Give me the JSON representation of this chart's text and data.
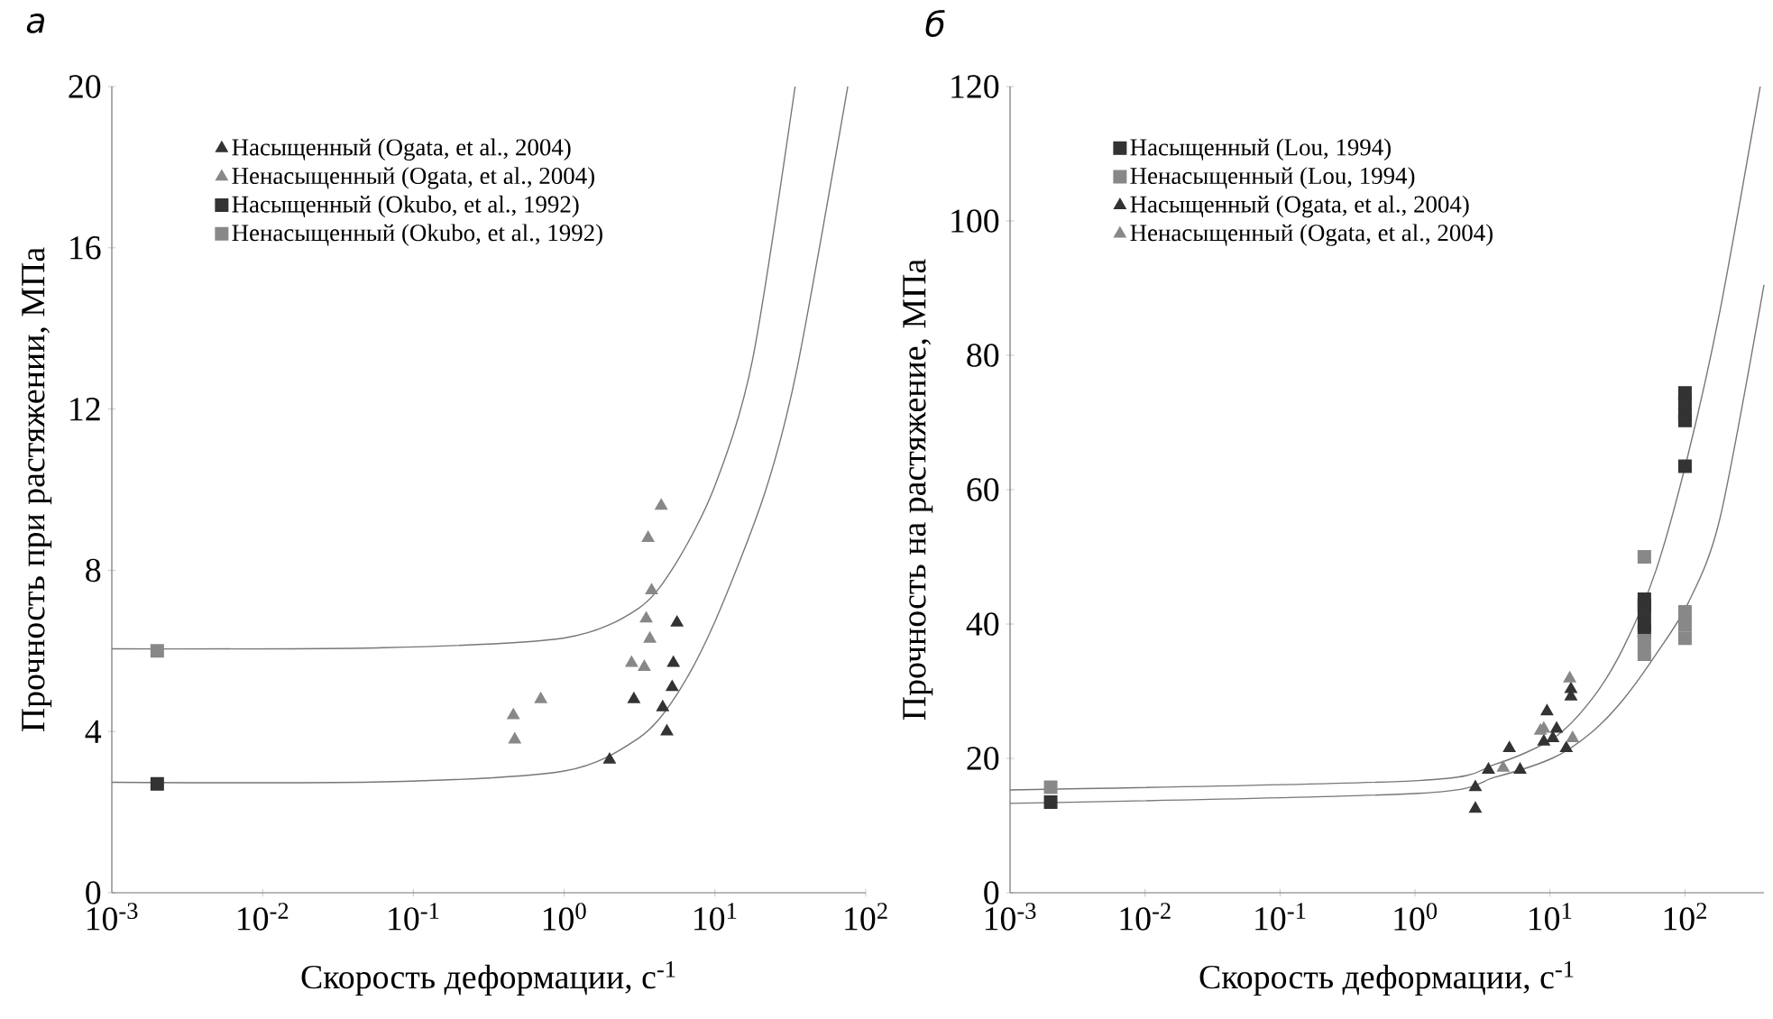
{
  "chart_data": [
    {
      "type": "scatter",
      "title": "а",
      "xlabel": "Скорость деформации, с$^{-1}$",
      "ylabel": "Прочность при растяжении, МПа",
      "log": "x",
      "legend": "top left",
      "xlim": [
        0.001,
        100
      ],
      "ylim": [
        0,
        20
      ],
      "xticks": [
        {
          "value": 0.001,
          "label": "10$^{-3}$"
        },
        {
          "value": 0.01,
          "label": "10$^{-2}$"
        },
        {
          "value": 0.1,
          "label": "10$^{-1}$"
        },
        {
          "value": 1,
          "label": "10$^{0}$"
        },
        {
          "value": 10,
          "label": "10$^{1}$"
        },
        {
          "value": 100,
          "label": "10$^{2}$"
        }
      ],
      "yticks": [
        0,
        4,
        8,
        12,
        16,
        20
      ],
      "series": [
        {
          "name": "Насыщенный (Ogata, et al., 2004)",
          "color": "#333333",
          "marker": "triangle",
          "x": [
            2.0,
            2.9,
            4.5,
            4.8,
            5.2,
            5.3,
            5.6
          ],
          "values": [
            3.3,
            4.8,
            4.6,
            4.0,
            5.1,
            5.7,
            6.7
          ]
        },
        {
          "name": "Ненасыщенный (Ogata, et al., 2004)",
          "color": "#888888",
          "marker": "triangle",
          "x": [
            0.46,
            0.47,
            0.7,
            2.8,
            3.4,
            3.5,
            3.7,
            3.8,
            3.6,
            4.4
          ],
          "values": [
            4.4,
            3.8,
            4.8,
            5.7,
            5.6,
            6.8,
            6.3,
            7.5,
            8.8,
            9.6
          ]
        },
        {
          "name": "Насыщенный (Okubo, et al., 1992)",
          "color": "#333333",
          "marker": "square",
          "x": [
            0.002
          ],
          "values": [
            2.7
          ]
        },
        {
          "name": "Ненасыщенный (Okubo, et al., 1992)",
          "color": "#888888",
          "marker": "square",
          "x": [
            0.002
          ],
          "values": [
            6.0
          ]
        },
        {
          "type": "line",
          "color": "#777777",
          "marker": "none",
          "x": [
            0.001,
            0.063,
            1,
            3.1,
            5.5,
            10,
            17.7,
            34
          ],
          "values": [
            6.05,
            6.08,
            6.32,
            7.05,
            8.17,
            10.1,
            13.2,
            20
          ]
        },
        {
          "type": "line",
          "color": "#777777",
          "marker": "none",
          "x": [
            0.001,
            0.063,
            1,
            3.1,
            5.5,
            10,
            21.5,
            35,
            76
          ],
          "values": [
            2.74,
            2.75,
            3.02,
            3.83,
            4.88,
            6.73,
            9.94,
            13.0,
            20
          ]
        }
      ]
    },
    {
      "type": "scatter",
      "title": "б",
      "xlabel": "Скорость деформации, с$^{-1}$",
      "ylabel": "Прочность на растяжение, МПа",
      "log": "x",
      "legend": "top left",
      "xlim": [
        0.001,
        385
      ],
      "ylim": [
        0,
        120
      ],
      "xticks": [
        {
          "value": 0.001,
          "label": "10$^{-3}$"
        },
        {
          "value": 0.01,
          "label": "10$^{-2}$"
        },
        {
          "value": 0.1,
          "label": "10$^{-1}$"
        },
        {
          "value": 1,
          "label": "10$^{0}$"
        },
        {
          "value": 10,
          "label": "10$^{1}$"
        },
        {
          "value": 100,
          "label": "10$^{2}$"
        }
      ],
      "yticks": [
        0,
        20,
        40,
        60,
        80,
        100,
        120
      ],
      "series": [
        {
          "name": "Насыщенный (Lou, 1994)",
          "color": "#333333",
          "marker": "square",
          "x": [
            0.002,
            50,
            50,
            50,
            50,
            50,
            100,
            100,
            100,
            100,
            100
          ],
          "values": [
            13.5,
            43.7,
            42.8,
            41.8,
            39.9,
            38.9,
            74.4,
            73.0,
            71.2,
            70.3,
            63.5
          ]
        },
        {
          "name": "Ненасыщенный (Lou, 1994)",
          "color": "#888888",
          "marker": "square",
          "x": [
            0.002,
            50,
            50,
            50,
            100,
            100,
            100
          ],
          "values": [
            15.7,
            50,
            37.5,
            35.5,
            41.8,
            39.9,
            37.9
          ]
        },
        {
          "name": "Насыщенный (Ogata, et al., 2004)",
          "color": "#333333",
          "marker": "triangle",
          "x": [
            2.8,
            2.8,
            3.5,
            5.0,
            6.0,
            9.5,
            9.0,
            10.5,
            11.2,
            13.2,
            14.3,
            14.3
          ],
          "values": [
            12.5,
            15.7,
            18.3,
            21.5,
            18.3,
            27.0,
            22.5,
            23.0,
            24.4,
            21.5,
            30.3,
            29.2
          ]
        },
        {
          "name": "Ненасыщенный (Ogata, et al., 2004)",
          "color": "#888888",
          "marker": "triangle",
          "x": [
            4.5,
            8.5,
            9.0,
            14.0,
            14.7
          ],
          "values": [
            18.6,
            24.1,
            24.4,
            31.9,
            23.0
          ]
        },
        {
          "type": "line",
          "color": "#777777",
          "marker": "none",
          "x": [
            0.001,
            1.06,
            3.9,
            10.6,
            20.4,
            35,
            61,
            106,
            182,
            361
          ],
          "values": [
            15.3,
            16.7,
            19.1,
            23.0,
            28.8,
            36.5,
            48,
            65.4,
            86.7,
            120
          ]
        },
        {
          "type": "line",
          "color": "#777777",
          "marker": "none",
          "x": [
            0.001,
            1.06,
            3.9,
            10.6,
            20.4,
            35,
            61,
            106,
            182,
            385
          ],
          "values": [
            13.3,
            14.8,
            17.2,
            20.1,
            23.9,
            28.8,
            35.5,
            43.2,
            55.8,
            90.5
          ]
        }
      ]
    }
  ]
}
